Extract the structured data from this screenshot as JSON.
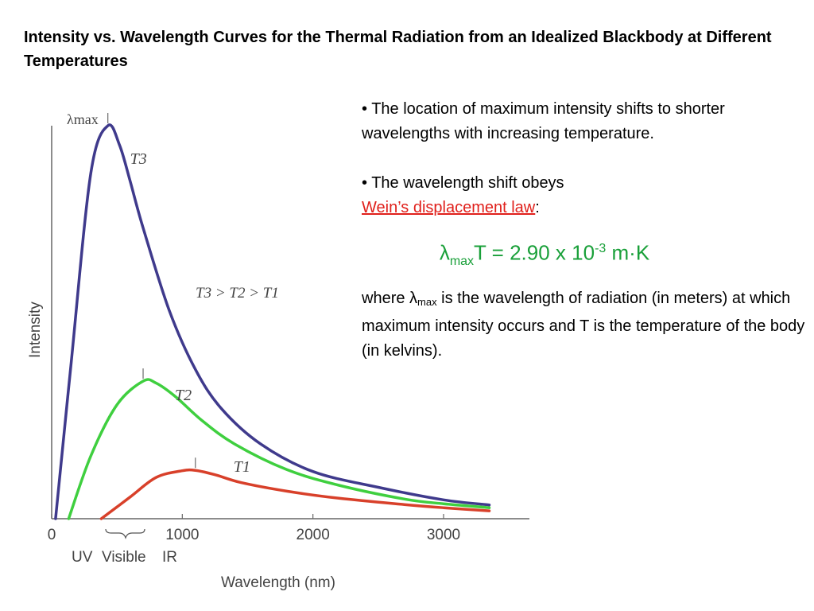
{
  "title": "Intensity vs. Wavelength Curves for the Thermal Radiation from an Idealized Blackbody at Different Temperatures",
  "notes": {
    "bullet1": "• The location of maximum intensity shifts to shorter wavelengths with increasing temperature.",
    "bullet2_text": "• The wavelength shift obeys",
    "law_link": "Wein’s displacement law",
    "law_after": ":",
    "formula_lambda": "λ",
    "formula_sub": "max",
    "formula_main": "T = 2.90 x 10",
    "formula_exp": "-3",
    "formula_units": " m·K",
    "where_prefix": "where ",
    "where_lambda": "λ",
    "where_sub": "max",
    "where_rest": " is the wavelength of radiation (in meters) at which maximum intensity occurs and T is the temperature of the body (in kelvins)."
  },
  "colors": {
    "T3": "#3f3a8c",
    "T2": "#3fcf3f",
    "T1": "#d8402a",
    "formula": "#1aa03a",
    "link": "#e0201b"
  },
  "chart_data": {
    "type": "line",
    "xlabel": "Wavelength (nm)",
    "ylabel": "Intensity",
    "x_ticks": [
      0,
      1000,
      2000,
      3000
    ],
    "xlim": [
      0,
      3500
    ],
    "ylim": [
      0,
      100
    ],
    "band_labels": [
      "UV",
      "Visible",
      "IR"
    ],
    "peak_label": "λmax",
    "relation_label": "T3 > T2 > T1",
    "series": [
      {
        "name": "T3",
        "color": "#3f3a8c",
        "x": [
          30,
          150,
          300,
          430,
          520,
          600,
          700,
          900,
          1100,
          1300,
          1600,
          2000,
          2500,
          3000,
          3350
        ],
        "y": [
          0,
          40,
          88,
          100,
          95,
          86,
          74,
          53,
          38,
          28,
          19,
          12,
          8,
          4.8,
          3.5
        ]
      },
      {
        "name": "T2",
        "color": "#3fcf3f",
        "x": [
          130,
          300,
          500,
          700,
          800,
          950,
          1150,
          1400,
          1800,
          2200,
          2700,
          3000,
          3350
        ],
        "y": [
          0,
          16,
          29,
          35,
          34.5,
          31,
          25,
          19,
          12.5,
          8.5,
          5,
          3.8,
          2.8
        ]
      },
      {
        "name": "T1",
        "color": "#d8402a",
        "x": [
          380,
          600,
          800,
          1000,
          1100,
          1250,
          1450,
          1800,
          2200,
          2700,
          3000,
          3350
        ],
        "y": [
          0,
          5.5,
          10.5,
          12.2,
          12.3,
          11.2,
          9.2,
          7,
          5.2,
          3.6,
          2.8,
          2
        ]
      }
    ]
  }
}
